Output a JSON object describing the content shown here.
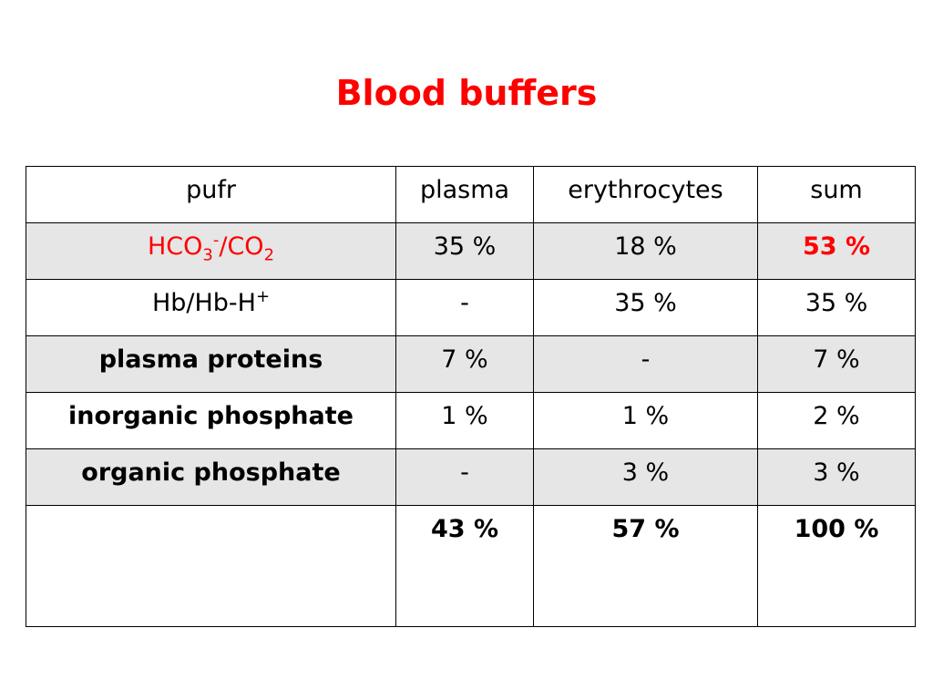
{
  "title": "Blood buffers",
  "colors": {
    "title": "#ff0000",
    "highlight": "#ff0000",
    "row_shade": "#e6e6e6",
    "border": "#000000"
  },
  "table": {
    "header": [
      "pufr",
      "plasma",
      "erythrocytes",
      "sum"
    ],
    "rows": [
      {
        "pufr": {
          "part1": "HCO",
          "sub1": "3",
          "sup": "-",
          "part2": "/CO",
          "sub2": "2"
        },
        "plasma": "35 %",
        "erythrocytes": "18 %",
        "sum": "53 %"
      },
      {
        "pufr": {
          "text": "Hb/Hb-H",
          "sup": "+"
        },
        "plasma": "-",
        "erythrocytes": "35 %",
        "sum": "35 %"
      },
      {
        "pufr": "plasma proteins",
        "plasma": "7 %",
        "erythrocytes": "-",
        "sum": "7 %"
      },
      {
        "pufr": "inorganic phosphate",
        "plasma": "1 %",
        "erythrocytes": "1 %",
        "sum": "2 %"
      },
      {
        "pufr": "organic phosphate",
        "plasma": "-",
        "erythrocytes": "3 %",
        "sum": "3 %"
      }
    ],
    "totals": {
      "pufr": "",
      "plasma": "43 %",
      "erythrocytes": "57 %",
      "sum": "100 %"
    }
  }
}
